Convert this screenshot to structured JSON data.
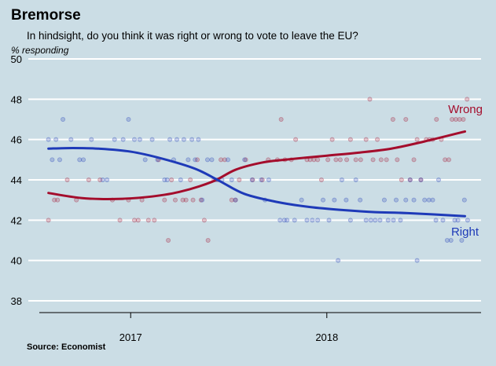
{
  "title": "Bremorse",
  "subtitle": "In hindsight, do you think it was right or wrong to vote to leave the EU?",
  "source": "Source: Economist",
  "chart_data": {
    "type": "scatter",
    "title": "Bremorse",
    "subtitle": "In hindsight, do you think it was right or wrong to vote to leave the EU?",
    "ylabel": "% responding",
    "xlabel": "",
    "ylim": [
      38,
      50
    ],
    "yticks": [
      38,
      40,
      42,
      44,
      46,
      48,
      50
    ],
    "x_range": [
      "2016-07-15",
      "2018-10-15"
    ],
    "xticks": [
      {
        "label": "2017",
        "date": "2017-01-01"
      },
      {
        "label": "2018",
        "date": "2018-01-01"
      }
    ],
    "grid": true,
    "series": [
      {
        "name": "Wrong",
        "color": "#a40d2c",
        "points": [
          [
            "2016-08-01",
            42
          ],
          [
            "2016-08-12",
            43
          ],
          [
            "2016-08-18",
            43
          ],
          [
            "2016-09-05",
            44
          ],
          [
            "2016-09-22",
            43
          ],
          [
            "2016-10-15",
            44
          ],
          [
            "2016-11-05",
            44
          ],
          [
            "2016-11-28",
            43
          ],
          [
            "2016-12-12",
            42
          ],
          [
            "2016-12-28",
            43
          ],
          [
            "2017-01-08",
            42
          ],
          [
            "2017-01-15",
            42
          ],
          [
            "2017-01-22",
            43
          ],
          [
            "2017-02-03",
            42
          ],
          [
            "2017-02-14",
            42
          ],
          [
            "2017-02-22",
            45
          ],
          [
            "2017-03-05",
            43
          ],
          [
            "2017-03-12",
            41
          ],
          [
            "2017-03-18",
            44
          ],
          [
            "2017-03-25",
            43
          ],
          [
            "2017-04-08",
            43
          ],
          [
            "2017-04-14",
            43
          ],
          [
            "2017-04-22",
            44
          ],
          [
            "2017-04-27",
            43
          ],
          [
            "2017-05-05",
            45
          ],
          [
            "2017-05-12",
            43
          ],
          [
            "2017-05-18",
            42
          ],
          [
            "2017-05-25",
            41
          ],
          [
            "2017-06-05",
            44
          ],
          [
            "2017-06-12",
            44
          ],
          [
            "2017-06-18",
            45
          ],
          [
            "2017-06-25",
            45
          ],
          [
            "2017-07-08",
            43
          ],
          [
            "2017-07-15",
            43
          ],
          [
            "2017-07-22",
            44
          ],
          [
            "2017-08-03",
            45
          ],
          [
            "2017-08-16",
            44
          ],
          [
            "2017-09-03",
            44
          ],
          [
            "2017-09-14",
            45
          ],
          [
            "2017-10-01",
            45
          ],
          [
            "2017-10-08",
            47
          ],
          [
            "2017-10-15",
            45
          ],
          [
            "2017-10-27",
            45
          ],
          [
            "2017-11-04",
            46
          ],
          [
            "2017-11-25",
            45
          ],
          [
            "2017-12-01",
            45
          ],
          [
            "2017-12-08",
            45
          ],
          [
            "2017-12-15",
            45
          ],
          [
            "2017-12-22",
            44
          ],
          [
            "2018-01-03",
            45
          ],
          [
            "2018-01-11",
            46
          ],
          [
            "2018-01-18",
            45
          ],
          [
            "2018-01-26",
            45
          ],
          [
            "2018-02-07",
            45
          ],
          [
            "2018-02-14",
            46
          ],
          [
            "2018-02-24",
            45
          ],
          [
            "2018-03-05",
            45
          ],
          [
            "2018-03-15",
            46
          ],
          [
            "2018-03-22",
            48
          ],
          [
            "2018-03-28",
            45
          ],
          [
            "2018-04-05",
            46
          ],
          [
            "2018-04-12",
            45
          ],
          [
            "2018-04-22",
            45
          ],
          [
            "2018-05-04",
            47
          ],
          [
            "2018-05-12",
            45
          ],
          [
            "2018-05-20",
            44
          ],
          [
            "2018-05-28",
            47
          ],
          [
            "2018-06-05",
            44
          ],
          [
            "2018-06-12",
            45
          ],
          [
            "2018-06-18",
            46
          ],
          [
            "2018-06-25",
            44
          ],
          [
            "2018-07-05",
            46
          ],
          [
            "2018-07-11",
            46
          ],
          [
            "2018-07-17",
            46
          ],
          [
            "2018-07-24",
            47
          ],
          [
            "2018-08-02",
            46
          ],
          [
            "2018-08-09",
            45
          ],
          [
            "2018-08-16",
            45
          ],
          [
            "2018-08-22",
            47
          ],
          [
            "2018-08-29",
            47
          ],
          [
            "2018-09-05",
            47
          ],
          [
            "2018-09-12",
            47
          ],
          [
            "2018-09-19",
            48
          ]
        ],
        "trend": [
          [
            "2016-08-01",
            43.35
          ],
          [
            "2016-10-01",
            43.1
          ],
          [
            "2016-12-01",
            43.05
          ],
          [
            "2017-02-01",
            43.15
          ],
          [
            "2017-04-01",
            43.4
          ],
          [
            "2017-06-01",
            43.9
          ],
          [
            "2017-07-15",
            44.5
          ],
          [
            "2017-09-01",
            44.85
          ],
          [
            "2017-10-15",
            45.0
          ],
          [
            "2018-01-01",
            45.2
          ],
          [
            "2018-03-01",
            45.35
          ],
          [
            "2018-05-01",
            45.55
          ],
          [
            "2018-07-01",
            45.9
          ],
          [
            "2018-09-15",
            46.4
          ]
        ]
      },
      {
        "name": "Right",
        "color": "#1e3ab8",
        "points": [
          [
            "2016-08-01",
            46
          ],
          [
            "2016-08-08",
            45
          ],
          [
            "2016-08-15",
            46
          ],
          [
            "2016-08-22",
            45
          ],
          [
            "2016-08-28",
            47
          ],
          [
            "2016-09-12",
            46
          ],
          [
            "2016-09-28",
            45
          ],
          [
            "2016-10-05",
            45
          ],
          [
            "2016-10-20",
            46
          ],
          [
            "2016-11-10",
            44
          ],
          [
            "2016-11-18",
            44
          ],
          [
            "2016-12-02",
            46
          ],
          [
            "2016-12-18",
            46
          ],
          [
            "2016-12-28",
            47
          ],
          [
            "2017-01-08",
            46
          ],
          [
            "2017-01-18",
            46
          ],
          [
            "2017-01-28",
            45
          ],
          [
            "2017-02-10",
            46
          ],
          [
            "2017-02-20",
            45
          ],
          [
            "2017-03-05",
            44
          ],
          [
            "2017-03-10",
            44
          ],
          [
            "2017-03-15",
            46
          ],
          [
            "2017-03-22",
            45
          ],
          [
            "2017-03-28",
            46
          ],
          [
            "2017-04-04",
            44
          ],
          [
            "2017-04-10",
            46
          ],
          [
            "2017-04-18",
            45
          ],
          [
            "2017-04-25",
            46
          ],
          [
            "2017-05-01",
            45
          ],
          [
            "2017-05-07",
            46
          ],
          [
            "2017-05-14",
            43
          ],
          [
            "2017-05-24",
            45
          ],
          [
            "2017-06-01",
            45
          ],
          [
            "2017-06-08",
            44
          ],
          [
            "2017-06-20",
            44
          ],
          [
            "2017-07-01",
            45
          ],
          [
            "2017-07-08",
            44
          ],
          [
            "2017-07-15",
            43
          ],
          [
            "2017-08-01",
            45
          ],
          [
            "2017-08-15",
            44
          ],
          [
            "2017-09-01",
            44
          ],
          [
            "2017-09-08",
            43
          ],
          [
            "2017-09-15",
            44
          ],
          [
            "2017-10-06",
            42
          ],
          [
            "2017-10-14",
            42
          ],
          [
            "2017-10-19",
            42
          ],
          [
            "2017-11-02",
            42
          ],
          [
            "2017-11-15",
            43
          ],
          [
            "2017-11-25",
            42
          ],
          [
            "2017-12-05",
            42
          ],
          [
            "2017-12-15",
            42
          ],
          [
            "2017-12-25",
            43
          ],
          [
            "2018-01-05",
            42
          ],
          [
            "2018-01-15",
            43
          ],
          [
            "2018-01-22",
            40
          ],
          [
            "2018-01-29",
            44
          ],
          [
            "2018-02-06",
            43
          ],
          [
            "2018-02-14",
            42
          ],
          [
            "2018-02-24",
            44
          ],
          [
            "2018-03-04",
            43
          ],
          [
            "2018-03-15",
            42
          ],
          [
            "2018-03-24",
            42
          ],
          [
            "2018-04-01",
            42
          ],
          [
            "2018-04-10",
            42
          ],
          [
            "2018-04-18",
            43
          ],
          [
            "2018-04-25",
            42
          ],
          [
            "2018-05-05",
            42
          ],
          [
            "2018-05-10",
            43
          ],
          [
            "2018-05-18",
            42
          ],
          [
            "2018-05-28",
            43
          ],
          [
            "2018-06-05",
            44
          ],
          [
            "2018-06-12",
            43
          ],
          [
            "2018-06-18",
            40
          ],
          [
            "2018-06-25",
            44
          ],
          [
            "2018-07-02",
            43
          ],
          [
            "2018-07-10",
            43
          ],
          [
            "2018-07-17",
            43
          ],
          [
            "2018-07-23",
            42
          ],
          [
            "2018-07-28",
            44
          ],
          [
            "2018-08-05",
            42
          ],
          [
            "2018-08-13",
            41
          ],
          [
            "2018-08-20",
            41
          ],
          [
            "2018-08-27",
            42
          ],
          [
            "2018-09-02",
            42
          ],
          [
            "2018-09-09",
            41
          ],
          [
            "2018-09-14",
            43
          ],
          [
            "2018-09-20",
            42
          ]
        ],
        "trend": [
          [
            "2016-08-01",
            45.55
          ],
          [
            "2016-09-15",
            45.58
          ],
          [
            "2016-11-01",
            45.55
          ],
          [
            "2017-01-01",
            45.4
          ],
          [
            "2017-03-01",
            45.05
          ],
          [
            "2017-05-01",
            44.55
          ],
          [
            "2017-06-15",
            43.95
          ],
          [
            "2017-08-01",
            43.3
          ],
          [
            "2017-10-01",
            42.9
          ],
          [
            "2017-12-01",
            42.65
          ],
          [
            "2018-02-01",
            42.5
          ],
          [
            "2018-04-01",
            42.4
          ],
          [
            "2018-06-01",
            42.35
          ],
          [
            "2018-09-15",
            42.2
          ]
        ]
      }
    ]
  }
}
